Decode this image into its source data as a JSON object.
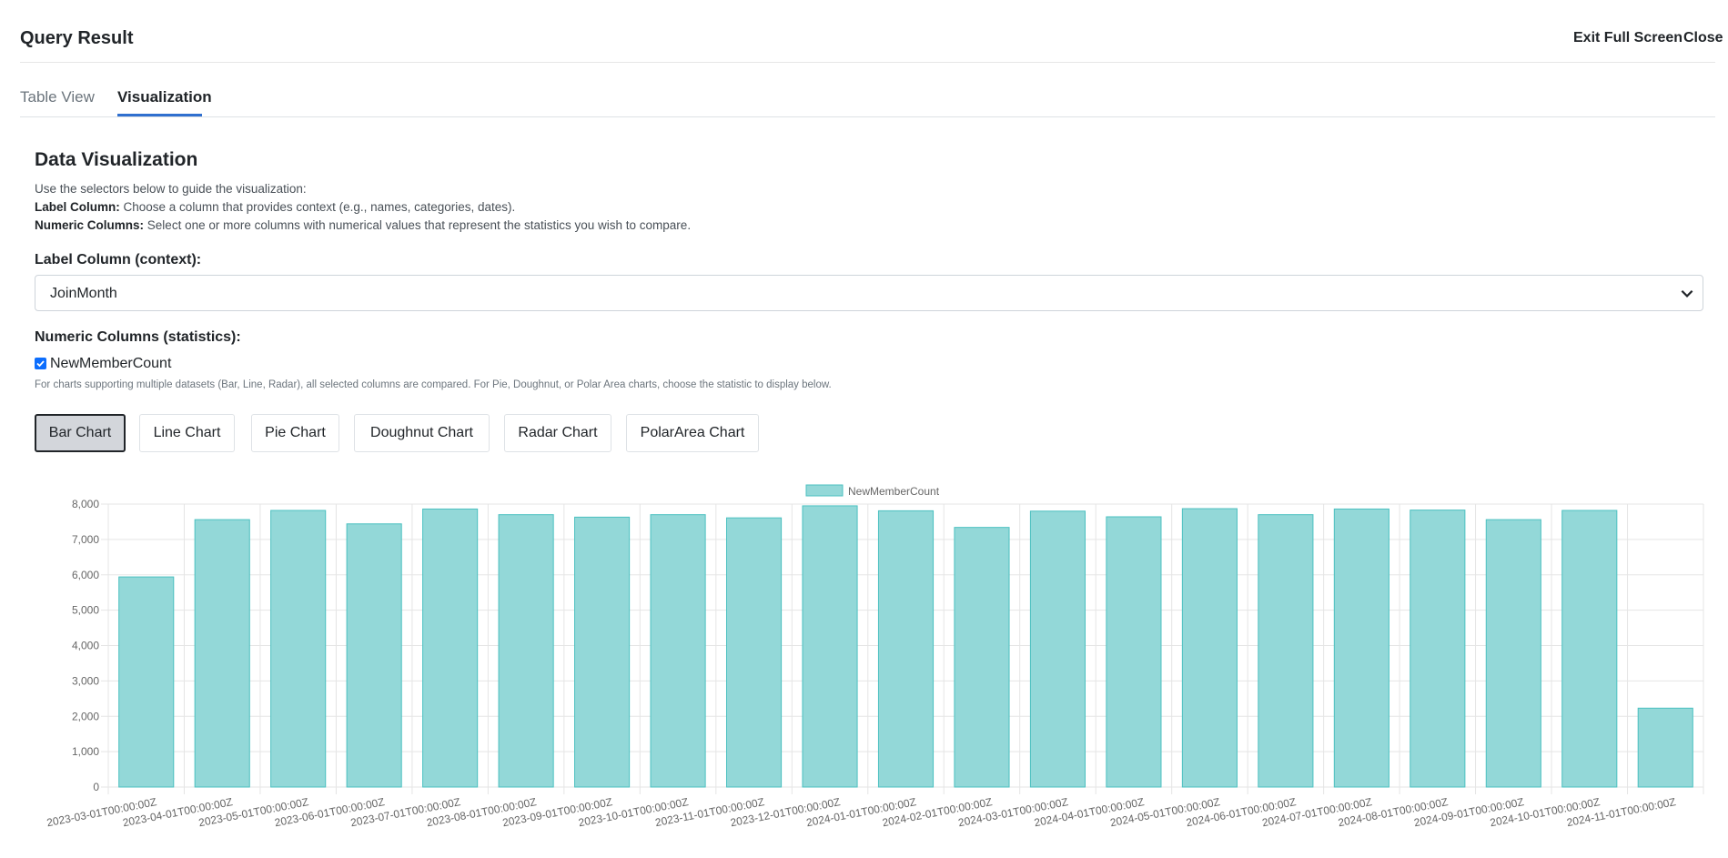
{
  "header": {
    "title": "Query Result",
    "exit_full_screen": "Exit Full Screen",
    "close": "Close"
  },
  "tabs": [
    {
      "label": "Table View",
      "active": false
    },
    {
      "label": "Visualization",
      "active": true
    }
  ],
  "viz": {
    "title": "Data Visualization",
    "intro": "Use the selectors below to guide the visualization:",
    "label_col_term": "Label Column:",
    "label_col_desc": "Choose a column that provides context (e.g., names, categories, dates).",
    "numeric_cols_term": "Numeric Columns:",
    "numeric_cols_desc": "Select one or more columns with numerical values that represent the statistics you wish to compare.",
    "label_column_heading": "Label Column (context):",
    "label_column_value": "JoinMonth",
    "numeric_columns_heading": "Numeric Columns (statistics):",
    "numeric_column_option": "NewMemberCount",
    "numeric_column_checked": true,
    "note": "For charts supporting multiple datasets (Bar, Line, Radar), all selected columns are compared. For Pie, Doughnut, or Polar Area charts, choose the statistic to display below.",
    "chart_types": [
      "Bar Chart",
      "Line Chart",
      "Pie Chart",
      "Doughnut Chart",
      "Radar Chart",
      "PolarArea Chart"
    ],
    "active_chart_type": "Bar Chart"
  },
  "colors": {
    "bar_fill": "#93d8d8",
    "bar_stroke": "#4bc0c0",
    "grid": "#e5e5e5",
    "tab_active": "#2f6fcf",
    "checkbox": "#0d6efd"
  },
  "icons": {
    "select_arrow": "chevron-down-icon",
    "checkbox": "checkmark-icon"
  },
  "chart_data": {
    "type": "bar",
    "categories": [
      "2023-03-01T00:00:00Z",
      "2023-04-01T00:00:00Z",
      "2023-05-01T00:00:00Z",
      "2023-06-01T00:00:00Z",
      "2023-07-01T00:00:00Z",
      "2023-08-01T00:00:00Z",
      "2023-09-01T00:00:00Z",
      "2023-10-01T00:00:00Z",
      "2023-11-01T00:00:00Z",
      "2023-12-01T00:00:00Z",
      "2024-01-01T00:00:00Z",
      "2024-02-01T00:00:00Z",
      "2024-03-01T00:00:00Z",
      "2024-04-01T00:00:00Z",
      "2024-05-01T00:00:00Z",
      "2024-06-01T00:00:00Z",
      "2024-07-01T00:00:00Z",
      "2024-08-01T00:00:00Z",
      "2024-09-01T00:00:00Z",
      "2024-10-01T00:00:00Z",
      "2024-11-01T00:00:00Z"
    ],
    "series": [
      {
        "name": "NewMemberCount",
        "values": [
          5940,
          7560,
          7820,
          7440,
          7860,
          7700,
          7630,
          7700,
          7610,
          7950,
          7810,
          7340,
          7800,
          7640,
          7870,
          7700,
          7860,
          7830,
          7560,
          7820,
          2230
        ]
      }
    ],
    "ylim": [
      0,
      8000
    ],
    "yticks": [
      "0",
      "1,000",
      "2,000",
      "3,000",
      "4,000",
      "5,000",
      "6,000",
      "7,000",
      "8,000"
    ],
    "legend": "top-center",
    "grid": true
  }
}
